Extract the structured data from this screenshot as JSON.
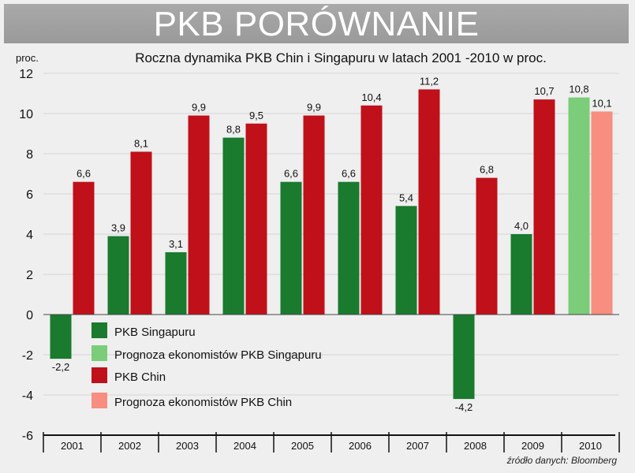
{
  "header": {
    "title": "PKB PORÓWNANIE"
  },
  "chart_data": {
    "type": "bar",
    "title": "Roczna dynamika PKB Chin i Singapuru w latach 2001 -2010 w proc.",
    "ylabel": "proc.",
    "xlabel": "",
    "ylim": [
      -6,
      12
    ],
    "yticks": [
      12,
      10,
      8,
      6,
      4,
      2,
      0,
      -2,
      -4,
      -6
    ],
    "grid": true,
    "categories": [
      "2001",
      "2002",
      "2003",
      "2004",
      "2005",
      "2006",
      "2007",
      "2008",
      "2009",
      "2010"
    ],
    "series": [
      {
        "name": "PKB Singapuru",
        "color": "#1a7a2e",
        "values": [
          -2.2,
          3.9,
          3.1,
          8.8,
          6.6,
          6.6,
          5.4,
          -4.2,
          4.0,
          null
        ],
        "labels": [
          "-2,2",
          "3,9",
          "3,1",
          "8,8",
          "6,6",
          "6,6",
          "5,4",
          "-4,2",
          "4,0",
          null
        ]
      },
      {
        "name": "Prognoza ekonomistów PKB Singapuru",
        "color": "#7ccd7a",
        "values": [
          null,
          null,
          null,
          null,
          null,
          null,
          null,
          null,
          null,
          10.8
        ],
        "labels": [
          null,
          null,
          null,
          null,
          null,
          null,
          null,
          null,
          null,
          "10,8"
        ]
      },
      {
        "name": "PKB Chin",
        "color": "#c0101a",
        "values": [
          6.6,
          8.1,
          9.9,
          9.5,
          9.9,
          10.4,
          11.2,
          6.8,
          10.7,
          null
        ],
        "labels": [
          "6,6",
          "8,1",
          "9,9",
          "9,5",
          "9,9",
          "10,4",
          "11,2",
          "6,8",
          "10,7",
          null
        ]
      },
      {
        "name": "Prognoza ekonomistów PKB Chin",
        "color": "#f78e80",
        "values": [
          null,
          null,
          null,
          null,
          null,
          null,
          null,
          null,
          null,
          10.1
        ],
        "labels": [
          null,
          null,
          null,
          null,
          null,
          null,
          null,
          null,
          null,
          "10,1"
        ]
      }
    ],
    "legend": "bottom-left-inside",
    "source": "źródło danych: Bloomberg"
  }
}
